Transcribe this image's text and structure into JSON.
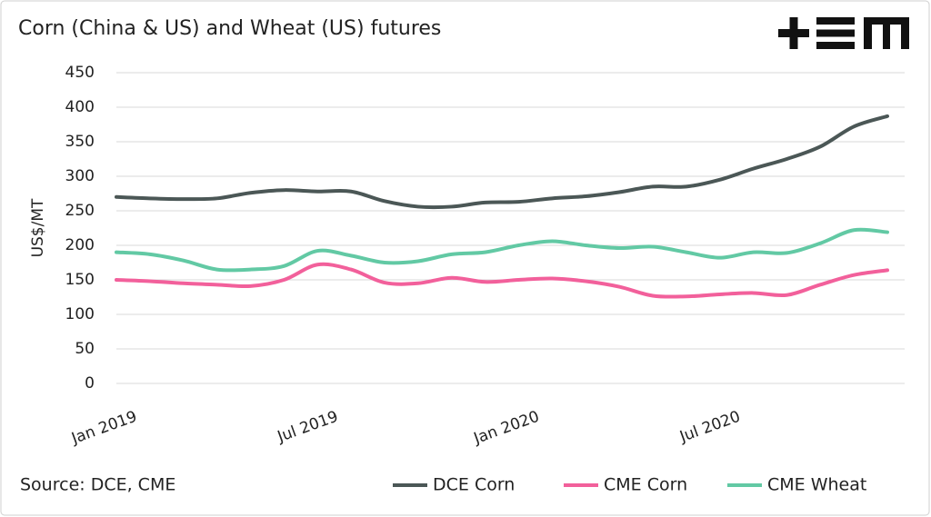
{
  "chart_data": {
    "type": "line",
    "title": "Corn (China & US) and Wheat (US) futures",
    "ylabel": "US$/MT",
    "source": "Source: DCE, CME",
    "categories": [
      "Jan 2019",
      null,
      null,
      null,
      null,
      null,
      "Jul 2019",
      null,
      null,
      null,
      null,
      null,
      "Jan 2020",
      null,
      null,
      null,
      null,
      null,
      "Jul 2020",
      null,
      null,
      null,
      null,
      null
    ],
    "series": [
      {
        "name": "DCE Corn",
        "color": "#4b5756",
        "values": [
          270,
          268,
          267,
          268,
          276,
          280,
          278,
          278,
          264,
          256,
          256,
          262,
          263,
          268,
          271,
          277,
          285,
          285,
          295,
          311,
          325,
          343,
          372,
          387
        ]
      },
      {
        "name": "CME Corn",
        "color": "#f2609b",
        "values": [
          150,
          148,
          145,
          143,
          141,
          150,
          172,
          165,
          146,
          145,
          153,
          147,
          150,
          152,
          148,
          140,
          127,
          126,
          129,
          131,
          128,
          143,
          157,
          164
        ]
      },
      {
        "name": "CME Wheat",
        "color": "#62c9a4",
        "values": [
          190,
          187,
          178,
          165,
          165,
          170,
          192,
          185,
          175,
          177,
          187,
          190,
          200,
          206,
          200,
          196,
          198,
          190,
          182,
          190,
          189,
          203,
          222,
          219
        ]
      }
    ],
    "ylim": [
      0,
      450
    ],
    "yticks": [
      0,
      50,
      100,
      150,
      200,
      250,
      300,
      350,
      400,
      450
    ],
    "grid": true
  }
}
